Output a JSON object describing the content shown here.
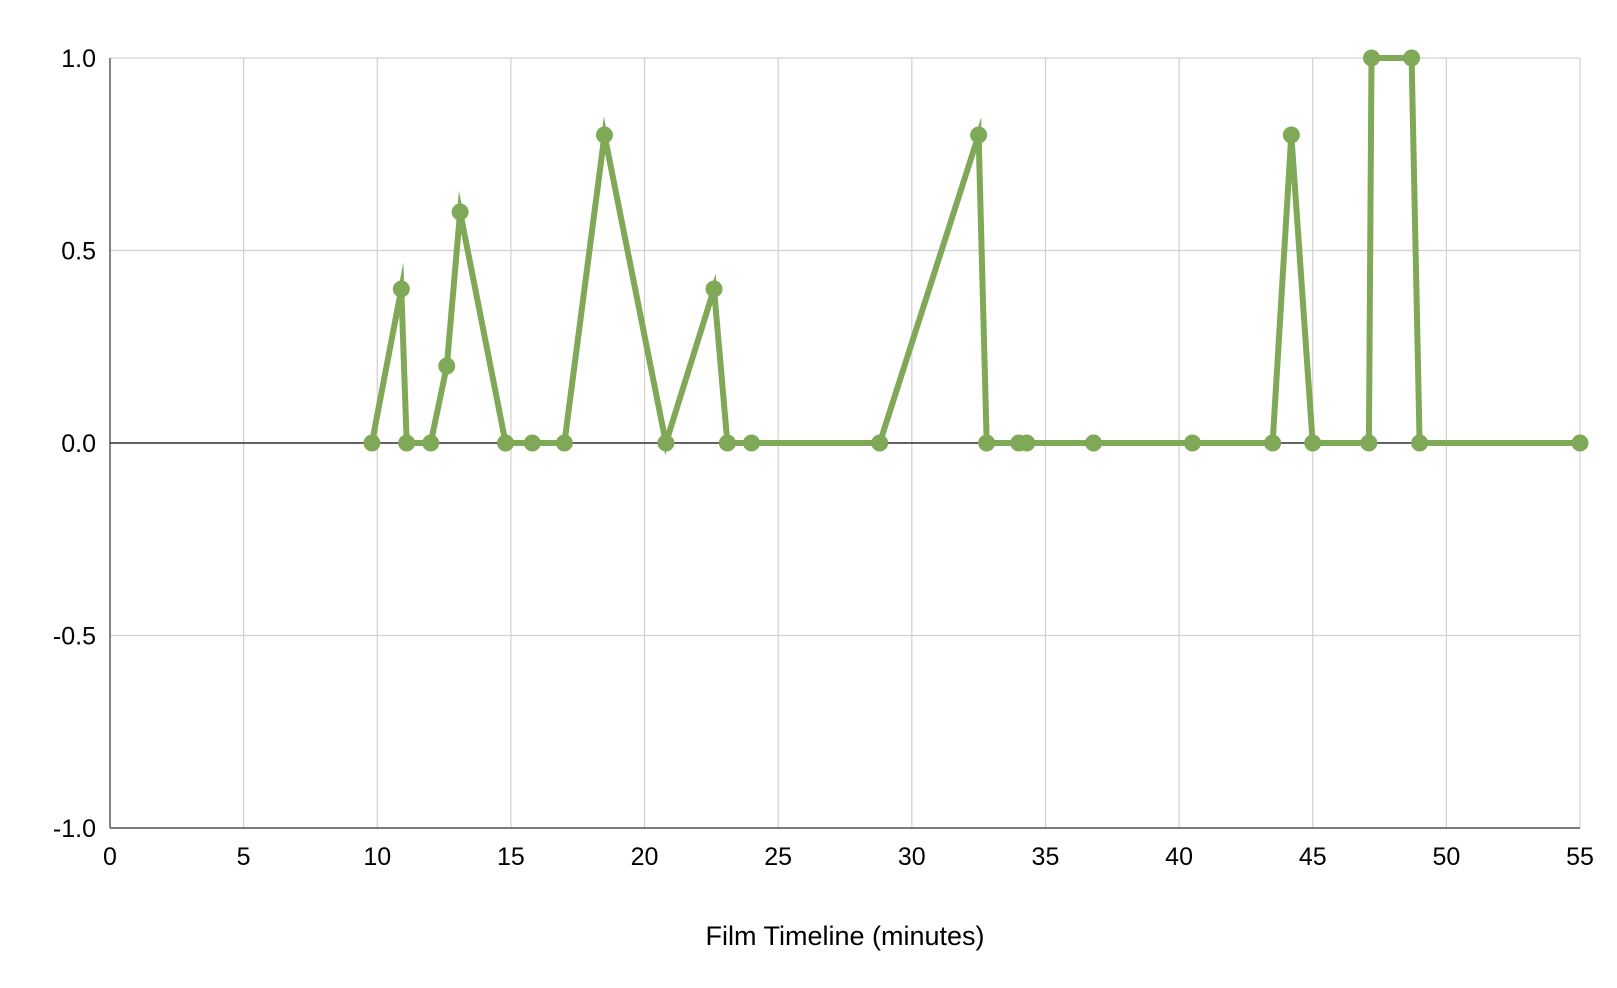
{
  "chart_data": {
    "type": "line",
    "xlabel": "Film Timeline (minutes)",
    "ylabel": "",
    "xlim": [
      0,
      55
    ],
    "ylim": [
      -1.0,
      1.0
    ],
    "x_ticks": [
      0,
      5,
      10,
      15,
      20,
      25,
      30,
      35,
      40,
      45,
      50,
      55
    ],
    "x_tick_labels": [
      "0",
      "5",
      "10",
      "15",
      "20",
      "25",
      "30",
      "35",
      "40",
      "45",
      "50",
      "55"
    ],
    "y_ticks": [
      1.0,
      0.5,
      0.0,
      -0.5,
      -1.0
    ],
    "y_tick_labels": [
      "1.0",
      "0.5",
      "0.0",
      "-0.5",
      "-1.0"
    ],
    "grid": true,
    "legend": "none",
    "series": [
      {
        "color": "#7fa857",
        "marker": "circle",
        "x": [
          9.8,
          10.9,
          11.1,
          12.0,
          12.6,
          13.1,
          14.8,
          15.8,
          17.0,
          18.5,
          20.8,
          22.6,
          23.1,
          24.0,
          28.8,
          32.5,
          32.8,
          34.0,
          34.3,
          36.8,
          40.5,
          43.5,
          44.2,
          45.0,
          47.1,
          47.2,
          48.7,
          49.0,
          55.0
        ],
        "y": [
          0.0,
          0.4,
          0.0,
          0.0,
          0.2,
          0.6,
          0.0,
          0.0,
          0.0,
          0.8,
          0.0,
          0.4,
          0.0,
          0.0,
          0.0,
          0.8,
          0.0,
          0.0,
          0.0,
          0.0,
          0.0,
          0.0,
          0.8,
          0.0,
          0.0,
          1.0,
          1.0,
          0.0,
          0.0
        ]
      }
    ]
  }
}
